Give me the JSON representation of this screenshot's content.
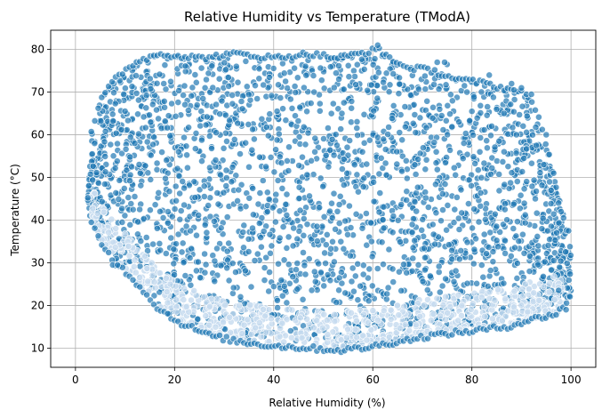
{
  "chart_data": {
    "type": "scatter",
    "title": "Relative Humidity vs Temperature (TModA)",
    "xlabel": "Relative Humidity (%)",
    "ylabel": "Temperature (°C)",
    "xlim": [
      -5,
      105
    ],
    "ylim": [
      5.5,
      84.5
    ],
    "xticks": [
      0,
      20,
      40,
      60,
      80,
      100
    ],
    "yticks": [
      10,
      20,
      30,
      40,
      50,
      60,
      70,
      80
    ],
    "grid": true,
    "marker_color": "#1f77b4",
    "marker_edge_color": "#ffffff",
    "marker_alpha": 0.7,
    "upper_envelope": [
      [
        2.5,
        45
      ],
      [
        3,
        60
      ],
      [
        5,
        68
      ],
      [
        8,
        73
      ],
      [
        12,
        77
      ],
      [
        17,
        79
      ],
      [
        25,
        78
      ],
      [
        33,
        79
      ],
      [
        40,
        78
      ],
      [
        47,
        79
      ],
      [
        53,
        78
      ],
      [
        61,
        80
      ],
      [
        66,
        76
      ],
      [
        72,
        75
      ],
      [
        77,
        73
      ],
      [
        83,
        72
      ],
      [
        86,
        71
      ],
      [
        90,
        70
      ],
      [
        93,
        66
      ],
      [
        95,
        58
      ],
      [
        97,
        48
      ],
      [
        99,
        38
      ],
      [
        100,
        32
      ]
    ],
    "lower_envelope": [
      [
        2.5,
        45
      ],
      [
        3,
        40
      ],
      [
        5,
        35
      ],
      [
        8,
        30
      ],
      [
        11,
        27
      ],
      [
        14,
        23
      ],
      [
        17,
        19
      ],
      [
        21,
        16
      ],
      [
        27,
        13
      ],
      [
        33,
        11.5
      ],
      [
        40,
        10.5
      ],
      [
        47,
        10
      ],
      [
        53,
        9.5
      ],
      [
        58,
        10
      ],
      [
        65,
        11.5
      ],
      [
        72,
        13
      ],
      [
        80,
        14
      ],
      [
        87,
        15
      ],
      [
        93,
        17
      ],
      [
        97,
        18
      ],
      [
        100,
        22
      ]
    ],
    "outliers": [
      [
        7.5,
        29.5
      ],
      [
        8.5,
        29.5
      ],
      [
        78.5,
        71.5
      ],
      [
        79,
        70
      ],
      [
        80,
        65.5
      ],
      [
        83.5,
        74
      ],
      [
        85,
        66
      ],
      [
        84,
        62
      ],
      [
        88,
        72
      ],
      [
        88.5,
        70.5
      ],
      [
        90,
        71
      ],
      [
        91,
        69.5
      ],
      [
        92,
        69.5
      ],
      [
        85.5,
        58.5
      ],
      [
        86.5,
        56
      ],
      [
        89,
        60
      ],
      [
        90.5,
        54.5
      ],
      [
        93,
        57.5
      ],
      [
        94.5,
        53
      ],
      [
        95,
        60
      ],
      [
        96.5,
        51
      ],
      [
        96,
        47
      ],
      [
        97.5,
        44
      ],
      [
        98,
        42
      ],
      [
        98.5,
        40.5
      ],
      [
        99.5,
        37.5
      ],
      [
        97.5,
        23.5
      ],
      [
        99,
        19
      ],
      [
        75,
        76.5
      ],
      [
        74.5,
        77
      ],
      [
        61,
        81
      ],
      [
        73,
        77
      ]
    ]
  }
}
